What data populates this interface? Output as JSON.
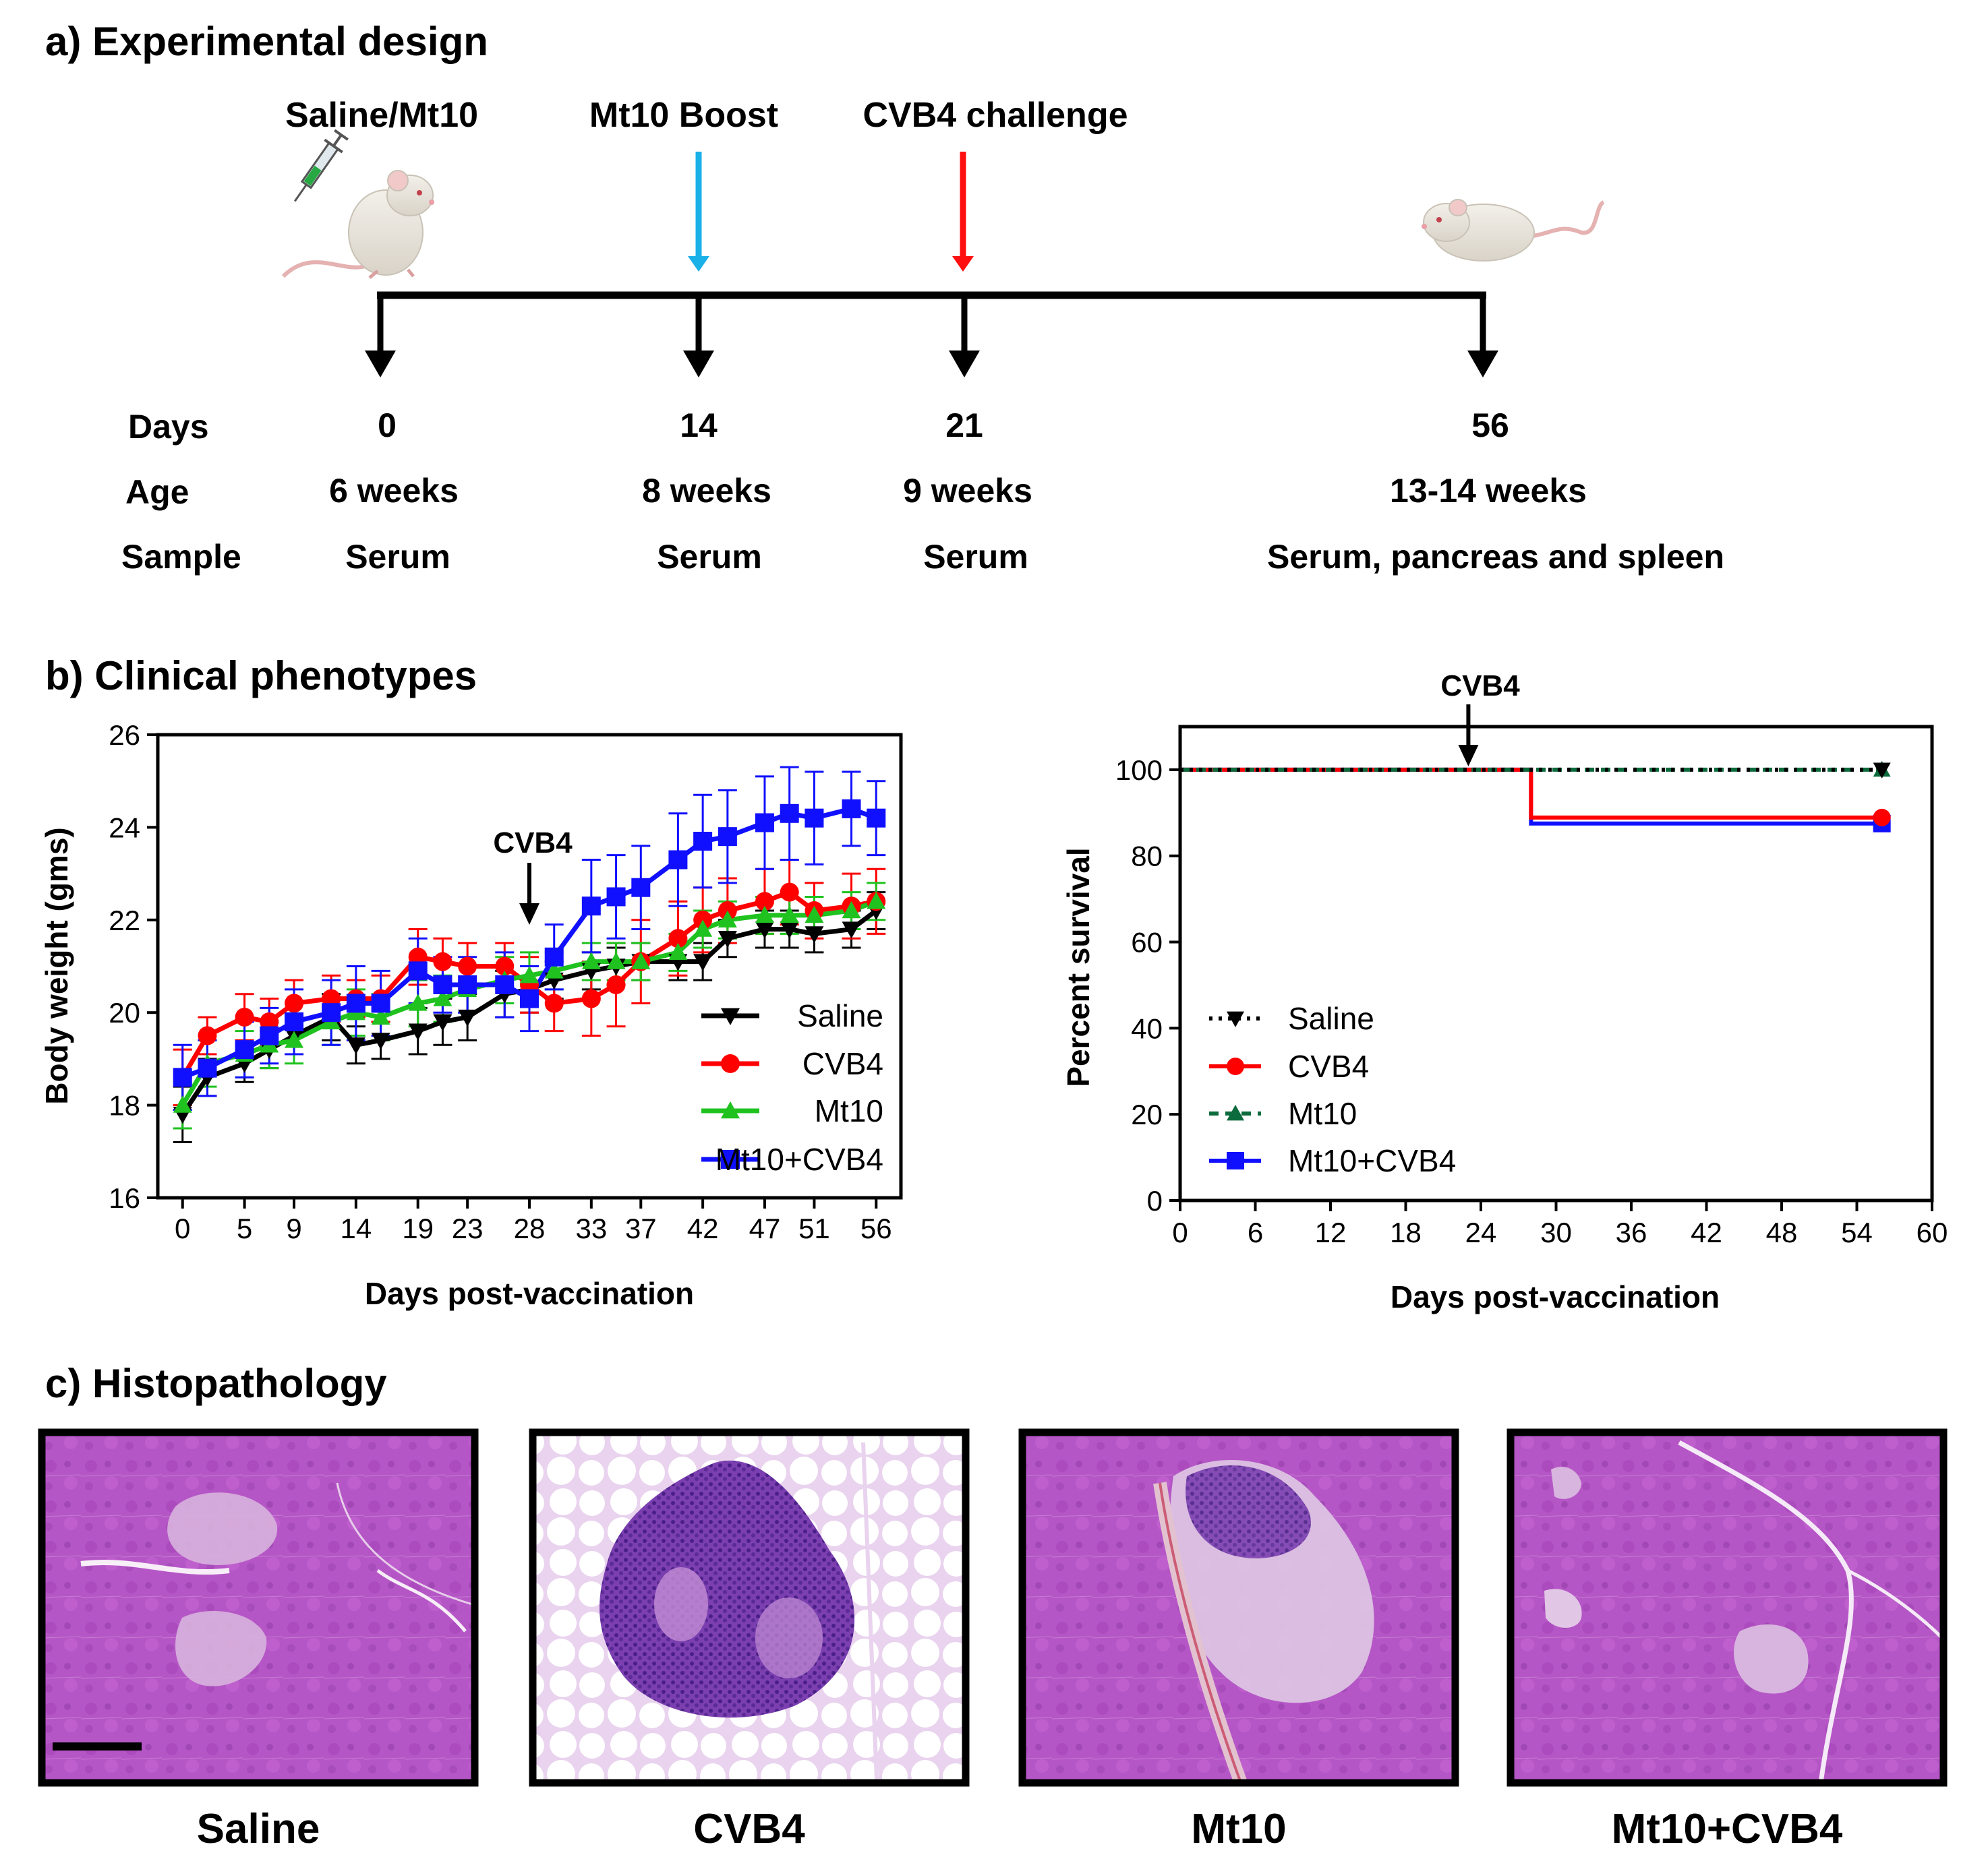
{
  "panels": {
    "a": {
      "title": "a) Experimental design"
    },
    "b": {
      "title": "b) Clinical phenotypes"
    },
    "c": {
      "title": "c) Histopathology"
    }
  },
  "design": {
    "events": [
      "Saline/Mt10",
      "Mt10 Boost",
      "CVB4 challenge"
    ],
    "row_labels": [
      "Days",
      "Age",
      "Sample"
    ],
    "days": [
      "0",
      "14",
      "21",
      "56"
    ],
    "ages": [
      "6 weeks",
      "8 weeks",
      "9 weeks",
      "13-14 weeks"
    ],
    "samples": [
      "Serum",
      "Serum",
      "Serum",
      "Serum, pancreas and spleen"
    ]
  },
  "histology": {
    "labels": [
      "Saline",
      "CVB4",
      "Mt10",
      "Mt10+CVB4"
    ]
  },
  "colors": {
    "saline": "#000000",
    "cvb4": "#ff0000",
    "mt10": "#1fc21f",
    "mt10_cvb4": "#1010ff",
    "mt10_survival": "#0c6b3c",
    "boost_arrow": "#1ab0e8",
    "challenge_arrow": "#ff1010",
    "histo_pink": "#b355c4"
  },
  "chart_data": [
    {
      "type": "line",
      "title": "",
      "xlabel": "Days post-vaccination",
      "ylabel": "Body weight (gms)",
      "annotation": "CVB4",
      "annotation_x": 28,
      "xlim": [
        -2,
        58
      ],
      "ylim": [
        16,
        26
      ],
      "xticks": [
        0,
        5,
        9,
        14,
        19,
        23,
        28,
        33,
        37,
        42,
        47,
        51,
        56
      ],
      "yticks": [
        16,
        18,
        20,
        22,
        24,
        26
      ],
      "x": [
        0,
        2,
        5,
        7,
        9,
        12,
        14,
        16,
        19,
        21,
        23,
        26,
        28,
        30,
        33,
        35,
        37,
        40,
        42,
        44,
        47,
        49,
        51,
        54,
        56
      ],
      "legend_position": "bottom-right",
      "series": [
        {
          "name": "Saline",
          "marker": "triangle-down",
          "values": [
            17.8,
            18.6,
            18.9,
            19.2,
            19.5,
            19.9,
            19.3,
            19.4,
            19.6,
            19.8,
            19.9,
            20.4,
            20.5,
            20.7,
            20.9,
            21.0,
            21.1,
            21.1,
            21.1,
            21.6,
            21.8,
            21.8,
            21.7,
            21.8,
            22.2
          ],
          "errors": [
            0.6,
            0.4,
            0.4,
            0.4,
            0.4,
            0.5,
            0.4,
            0.4,
            0.5,
            0.5,
            0.5,
            0.5,
            0.5,
            0.4,
            0.4,
            0.4,
            0.4,
            0.4,
            0.4,
            0.4,
            0.4,
            0.4,
            0.4,
            0.4,
            0.4
          ]
        },
        {
          "name": "CVB4",
          "marker": "circle",
          "values": [
            18.6,
            19.5,
            19.9,
            19.8,
            20.2,
            20.3,
            20.3,
            20.3,
            21.2,
            21.1,
            21.0,
            21.0,
            20.6,
            20.2,
            20.3,
            20.6,
            21.1,
            21.6,
            22.0,
            22.2,
            22.4,
            22.6,
            22.2,
            22.3,
            22.4
          ],
          "errors": [
            0.6,
            0.4,
            0.5,
            0.5,
            0.5,
            0.5,
            0.4,
            0.5,
            0.6,
            0.5,
            0.5,
            0.5,
            0.6,
            0.6,
            0.8,
            0.9,
            0.9,
            0.8,
            0.7,
            0.7,
            0.7,
            0.7,
            0.6,
            0.7,
            0.7
          ]
        },
        {
          "name": "Mt10",
          "marker": "triangle-up",
          "values": [
            18.0,
            18.9,
            19.1,
            19.3,
            19.4,
            19.8,
            20.0,
            19.9,
            20.2,
            20.3,
            20.5,
            20.7,
            20.8,
            20.9,
            21.1,
            21.1,
            21.1,
            21.3,
            21.8,
            22.0,
            22.1,
            22.1,
            22.1,
            22.2,
            22.4
          ],
          "errors": [
            0.5,
            0.5,
            0.5,
            0.5,
            0.5,
            0.5,
            0.5,
            0.5,
            0.5,
            0.5,
            0.5,
            0.5,
            0.5,
            0.4,
            0.4,
            0.4,
            0.4,
            0.4,
            0.4,
            0.4,
            0.4,
            0.4,
            0.4,
            0.4,
            0.4
          ]
        },
        {
          "name": "Mt10+CVB4",
          "marker": "square",
          "values": [
            18.6,
            18.8,
            19.2,
            19.5,
            19.8,
            20.0,
            20.2,
            20.2,
            20.9,
            20.6,
            20.6,
            20.6,
            20.3,
            21.2,
            22.3,
            22.5,
            22.7,
            23.3,
            23.7,
            23.8,
            24.1,
            24.3,
            24.2,
            24.4,
            24.2
          ],
          "errors": [
            0.7,
            0.6,
            0.6,
            0.6,
            0.7,
            0.7,
            0.8,
            0.7,
            0.7,
            0.6,
            0.6,
            0.7,
            0.7,
            0.7,
            1.0,
            0.9,
            0.9,
            1.0,
            1.0,
            1.0,
            1.0,
            1.0,
            1.0,
            0.8,
            0.8
          ]
        }
      ]
    },
    {
      "type": "line",
      "subtype": "survival",
      "title": "",
      "xlabel": "Days post-vaccination",
      "ylabel": "Percent survival",
      "annotation": "CVB4",
      "annotation_x": 23,
      "xlim": [
        0,
        60
      ],
      "ylim": [
        0,
        110
      ],
      "xticks": [
        0,
        6,
        12,
        18,
        24,
        30,
        36,
        42,
        48,
        54,
        60
      ],
      "yticks": [
        0,
        20,
        40,
        60,
        80,
        100
      ],
      "legend_position": "bottom-left",
      "series": [
        {
          "name": "Saline",
          "marker": "triangle-down",
          "style": "dotted",
          "steps": [
            [
              0,
              100
            ],
            [
              56,
              100
            ]
          ]
        },
        {
          "name": "CVB4",
          "marker": "circle",
          "style": "solid",
          "steps": [
            [
              0,
              100
            ],
            [
              28,
              100
            ],
            [
              28,
              88.9
            ],
            [
              56,
              88.9
            ]
          ]
        },
        {
          "name": "Mt10",
          "marker": "triangle-up",
          "style": "dashed",
          "steps": [
            [
              0,
              100
            ],
            [
              56,
              100
            ]
          ]
        },
        {
          "name": "Mt10+CVB4",
          "marker": "square",
          "style": "solid",
          "steps": [
            [
              0,
              100
            ],
            [
              28,
              100
            ],
            [
              28,
              87.5
            ],
            [
              56,
              87.5
            ]
          ]
        }
      ]
    }
  ]
}
